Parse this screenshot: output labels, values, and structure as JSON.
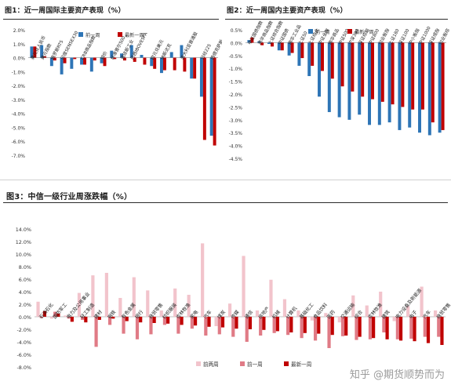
{
  "fig1": {
    "title": "图1：近一周国际主要资产表现（%）",
    "chart_data": {
      "type": "bar",
      "ylim": [
        -7.0,
        2.0
      ],
      "yticks": [
        "2.0%",
        "1.0%",
        "0.0%",
        "-1.0%",
        "-2.0%",
        "-3.0%",
        "-4.0%",
        "-5.0%",
        "-6.0%",
        "-7.0%"
      ],
      "categories": [
        "美元兑人民币",
        "美元指数",
        "俄罗斯RTS",
        "印度SENSEX30",
        "日经225",
        "CRB商品指数",
        "欧元",
        "铜价",
        "标准普尔500",
        "道琼斯工业",
        "巴西IBOVESPA",
        "法国CAC40",
        "恒生指数",
        "纳斯达克",
        "德国DAX",
        "澳大利亚普通股",
        "英国富时100",
        "伦敦金",
        "WTI原油"
      ],
      "category_labels": [
        "美元兑人民币",
        "美元指数",
        "俄罗斯RTS",
        "印度SENSEX30",
        "",
        "CRB商品指数",
        "",
        "铜价",
        "标准普尔500",
        "道琼斯工业",
        "巴西IBOVESPA",
        "",
        "欧元兑美元",
        "纳斯达克",
        "",
        "澳大利亚普通股",
        "",
        "日经225",
        "西德克萨斯"
      ],
      "series": [
        {
          "name": "前一周",
          "color": "#2e75b6",
          "values": [
            0.8,
            0.9,
            -0.6,
            -1.2,
            -0.8,
            -0.5,
            -1.0,
            -0.4,
            0.5,
            0.3,
            0.9,
            0.2,
            -0.6,
            -1.1,
            0.4,
            0.9,
            -1.5,
            -2.8,
            -5.6
          ]
        },
        {
          "name": "最新一周",
          "color": "#c00000",
          "values": [
            0.8,
            0.1,
            -0.2,
            -0.4,
            -0.1,
            -0.5,
            -0.2,
            -0.6,
            -0.1,
            -0.2,
            -0.3,
            -0.5,
            -0.8,
            -0.9,
            -0.9,
            -1.0,
            -1.5,
            -5.9,
            -6.3
          ]
        }
      ],
      "legend": "top-right"
    }
  },
  "fig2": {
    "title": "图2：近一周国内主要资产表现（%）",
    "chart_data": {
      "type": "bar",
      "ylim": [
        -4.5,
        0.5
      ],
      "yticks": [
        "0.5%",
        "0.0%",
        "-0.5%",
        "-1.0%",
        "-1.5%",
        "-2.0%",
        "-2.5%",
        "-3.0%",
        "-3.5%",
        "-4.0%",
        "-4.5%"
      ],
      "categories": [
        "中证国债指数",
        "南华商品指数",
        "南华工业品",
        "上证综合指数",
        "上证50",
        "沪深300",
        "中证500",
        "中小板指数",
        "创业板指数",
        "深证成指",
        "上证180",
        "上证380",
        "中证100",
        "中证800",
        "中证1000",
        "深证100",
        "创业板综",
        "中小板综",
        "深证综指",
        "上证指数"
      ],
      "category_labels": [
        "中证国债指数",
        "南华商品指数",
        "上证综合指数",
        "中证国债",
        "南华工业品",
        "上证50",
        "上证综合",
        "中证全指",
        "南华商品",
        "中证500",
        "沪深300",
        "深证综指",
        "中证800",
        "创业板指",
        "上证180",
        "深证100",
        "中小板指",
        "中证1000",
        "深证成指",
        "创业板综"
      ],
      "series": [
        {
          "name": "前一周",
          "color": "#2e75b6",
          "values": [
            0.1,
            0.05,
            -0.05,
            -0.3,
            -0.5,
            -0.9,
            -1.3,
            -2.1,
            -2.7,
            -2.9,
            -3.0,
            -2.8,
            -3.2,
            -3.2,
            -3.1,
            -3.4,
            -3.3,
            -3.5,
            -3.6,
            -3.5
          ]
        },
        {
          "name": "最新一周",
          "color": "#c00000",
          "values": [
            0.2,
            -0.1,
            -0.15,
            -0.3,
            -0.4,
            -0.6,
            -0.9,
            -1.1,
            -1.4,
            -1.7,
            -1.9,
            -2.1,
            -2.2,
            -2.3,
            -2.4,
            -2.5,
            -2.6,
            -2.6,
            -3.1,
            -3.4
          ]
        }
      ],
      "legend": "top-right"
    }
  },
  "fig3": {
    "title": "图3：中信一级行业周涨跌幅（%）",
    "chart_data": {
      "type": "bar",
      "ylim": [
        -8.0,
        14.0
      ],
      "yticks": [
        "14.0%",
        "12.0%",
        "10.0%",
        "8.0%",
        "6.0%",
        "4.0%",
        "2.0%",
        "0.0%",
        "-2.0%",
        "-4.0%",
        "-6.0%",
        "-8.0%"
      ],
      "categories": [
        "石油石化",
        "国防军工",
        "电力及公用事业",
        "轻工制造",
        "建材",
        "钢铁",
        "有色金属",
        "银行",
        "商贸零售",
        "纺织服装",
        "农林牧渔",
        "家电",
        "汽车",
        "煤炭",
        "传媒",
        "通信",
        "房地产",
        "机械",
        "计算机",
        "基础化工",
        "食品饮料",
        "医药",
        "交通运输",
        "综合",
        "非银行金融",
        "建筑",
        "消费者服务",
        "电子",
        "电力设备及新能源",
        "社会服务"
      ],
      "category_labels": [
        "石油石化",
        "国防军工",
        "电力及公用事业",
        "轻工制造",
        "建材",
        "钢铁",
        "有色金属",
        "银行",
        "商贸零售",
        "纺织服装",
        "农林牧渔",
        "家电",
        "汽车",
        "煤炭",
        "传媒",
        "通信",
        "房地产",
        "机械",
        "计算机",
        "基础化工",
        "食品饮料",
        "医药",
        "交通运输",
        "综合",
        "农林牧渔",
        "建筑",
        "电力设备及新能源",
        "电子",
        "汽车",
        "商贸零售"
      ],
      "series": [
        {
          "name": "前两周",
          "color": "#f2c4cc",
          "values": [
            2.4,
            -0.3,
            0.2,
            3.8,
            6.6,
            7.0,
            3.0,
            6.3,
            4.2,
            1.0,
            4.5,
            3.5,
            11.7,
            -1.5,
            2.1,
            9.7,
            1.0,
            5.9,
            2.8,
            1.0,
            -0.6,
            0.6,
            -0.9,
            3.4,
            1.8,
            4.0,
            -0.7,
            1.7,
            4.8,
            1.0
          ]
        },
        {
          "name": "前一周",
          "color": "#e07b86",
          "values": [
            -0.2,
            0.8,
            -0.3,
            -0.5,
            -4.8,
            -1.3,
            -2.7,
            -3.6,
            -2.8,
            -1.3,
            -2.7,
            -1.9,
            -3.0,
            -2.8,
            -3.2,
            -4.0,
            -3.0,
            -2.6,
            -2.9,
            -3.4,
            -3.8,
            -5.0,
            -3.1,
            -3.7,
            -3.6,
            -2.5,
            -3.6,
            -3.5,
            -3.2,
            -3.2
          ]
        },
        {
          "name": "最新一周",
          "color": "#c00000",
          "values": [
            0.9,
            0.5,
            -0.8,
            -0.9,
            -0.5,
            -0.3,
            -0.7,
            -0.9,
            -1.0,
            -1.1,
            -1.3,
            -1.4,
            -1.6,
            -1.7,
            -1.9,
            -2.0,
            -2.1,
            -2.3,
            -2.5,
            -2.6,
            -2.7,
            -2.9,
            -3.0,
            -3.2,
            -3.4,
            -3.6,
            -3.8,
            -3.9,
            -4.2,
            -4.5
          ]
        }
      ],
      "legend": "bottom"
    }
  },
  "watermark": "知乎 @期货顺势而为"
}
